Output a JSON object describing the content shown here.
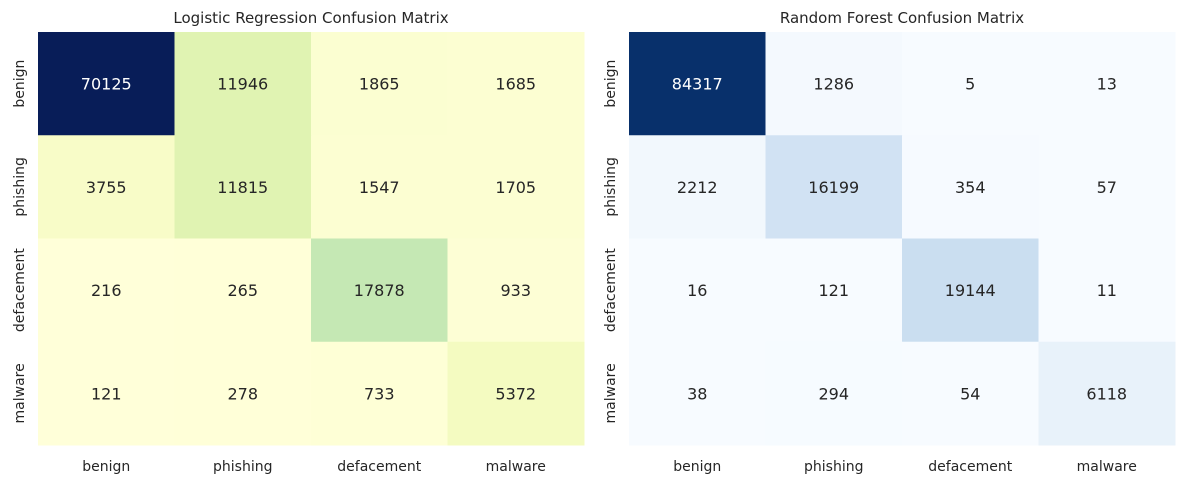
{
  "chart_data": [
    {
      "type": "heatmap",
      "title": "Logistic Regression Confusion Matrix",
      "x_categories": [
        "benign",
        "phishing",
        "defacement",
        "malware"
      ],
      "y_categories": [
        "benign",
        "phishing",
        "defacement",
        "malware"
      ],
      "values": [
        [
          70125,
          11946,
          1865,
          1685
        ],
        [
          3755,
          11815,
          1547,
          1705
        ],
        [
          216,
          265,
          17878,
          933
        ],
        [
          121,
          278,
          733,
          5372
        ]
      ],
      "colormap": "YlGnBu",
      "colorbar": false
    },
    {
      "type": "heatmap",
      "title": "Random Forest Confusion Matrix",
      "x_categories": [
        "benign",
        "phishing",
        "defacement",
        "malware"
      ],
      "y_categories": [
        "benign",
        "phishing",
        "defacement",
        "malware"
      ],
      "values": [
        [
          84317,
          1286,
          5,
          13
        ],
        [
          2212,
          16199,
          354,
          57
        ],
        [
          16,
          121,
          19144,
          11
        ],
        [
          38,
          294,
          54,
          6118
        ]
      ],
      "colormap": "Blues",
      "colorbar": false
    }
  ]
}
